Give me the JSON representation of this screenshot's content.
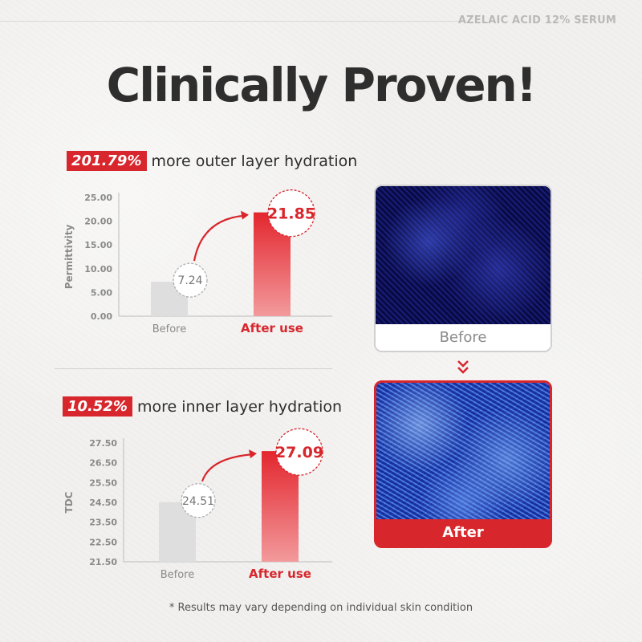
{
  "brand": "AZELAIC ACID 12% SERUM",
  "headline": "Clinically Proven!",
  "stats": [
    {
      "pct": "201.79%",
      "text": "more outer layer hydration"
    },
    {
      "pct": "10.52%",
      "text": "more inner layer hydration"
    }
  ],
  "photos": {
    "before_label": "Before",
    "after_label": "After"
  },
  "footnote": "* Results may vary depending on individual skin condition",
  "colors": {
    "accent": "#d7262c",
    "before_bar": "#dedede",
    "text": "#2e2e2e"
  },
  "chart_data": [
    {
      "type": "bar",
      "ylabel": "Permittivity",
      "categories": [
        "Before",
        "After use"
      ],
      "values": [
        7.24,
        21.85
      ],
      "value_labels": [
        "7.24",
        "21.85"
      ],
      "yticks": [
        "25.00",
        "20.00",
        "15.00",
        "10.00",
        "5.00",
        "0.00"
      ],
      "ylim": [
        0,
        25
      ]
    },
    {
      "type": "bar",
      "ylabel": "TDC",
      "categories": [
        "Before",
        "After use"
      ],
      "values": [
        24.51,
        27.09
      ],
      "value_labels": [
        "24.51",
        "27.09"
      ],
      "yticks": [
        "27.50",
        "26.50",
        "25.50",
        "24.50",
        "23.50",
        "22.50",
        "21.50"
      ],
      "ylim": [
        21.5,
        27.5
      ]
    }
  ]
}
